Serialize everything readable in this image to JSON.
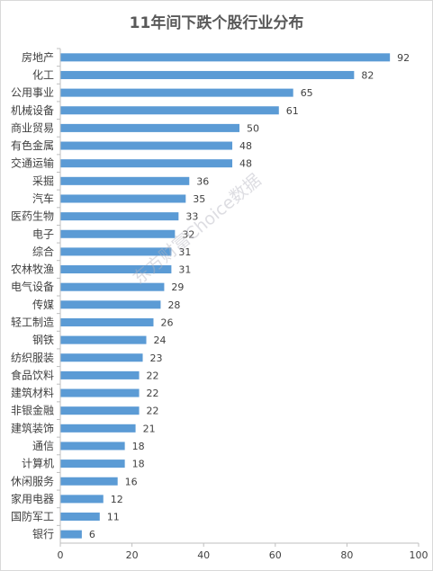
{
  "colors": {
    "bar": "#5b9bd5",
    "text": "#404040",
    "axis": "#bfbfbf",
    "title": "#595959"
  },
  "watermark": "东方财富Choice数据",
  "chart_data": {
    "type": "bar",
    "orientation": "horizontal",
    "title": "11年间下跌个股行业分布",
    "xlabel": "",
    "ylabel": "",
    "xlim": [
      0,
      100
    ],
    "xticks": [
      0,
      20,
      40,
      60,
      80,
      100
    ],
    "grid": false,
    "data_labels": true,
    "categories": [
      "房地产",
      "化工",
      "公用事业",
      "机械设备",
      "商业贸易",
      "有色金属",
      "交通运输",
      "采掘",
      "汽车",
      "医药生物",
      "电子",
      "综合",
      "农林牧渔",
      "电气设备",
      "传媒",
      "轻工制造",
      "钢铁",
      "纺织服装",
      "食品饮料",
      "建筑材料",
      "非银金融",
      "建筑装饰",
      "通信",
      "计算机",
      "休闲服务",
      "家用电器",
      "国防军工",
      "银行"
    ],
    "values": [
      92,
      82,
      65,
      61,
      50,
      48,
      48,
      36,
      35,
      33,
      32,
      31,
      31,
      29,
      28,
      26,
      24,
      23,
      22,
      22,
      22,
      21,
      18,
      18,
      16,
      12,
      11,
      6
    ]
  }
}
